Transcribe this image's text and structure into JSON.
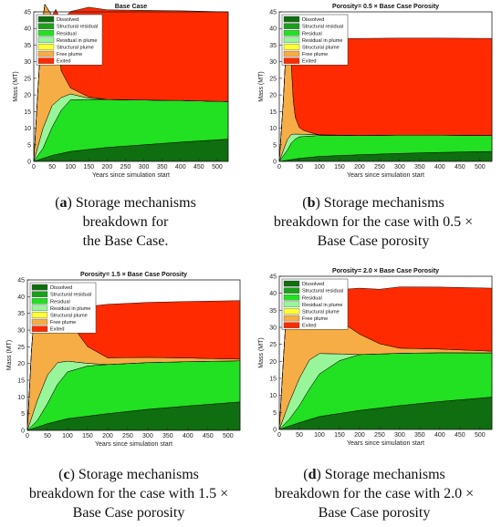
{
  "colors": {
    "dissolved": "#0f6e0f",
    "structural_residual": "#1aa01a",
    "residual": "#22e022",
    "residual_in_plume": "#99f599",
    "structural_plume": "#ffff33",
    "free_plume": "#f7ad45",
    "exited": "#ff2a00"
  },
  "chart_data": [
    {
      "type": "area",
      "title": "Base Case",
      "xlabel": "Years since simulation start",
      "ylabel": "Mass (MT)",
      "xlim": [
        0,
        530
      ],
      "ylim": [
        0,
        45
      ],
      "xticks": [
        0,
        50,
        100,
        150,
        200,
        250,
        300,
        350,
        400,
        450,
        500
      ],
      "yticks": [
        0,
        5,
        10,
        15,
        20,
        25,
        30,
        35,
        40,
        45
      ],
      "legend_position": "top-left",
      "series": [
        {
          "name": "Dissolved",
          "x": [
            0,
            50,
            100,
            200,
            300,
            400,
            530
          ],
          "values": [
            0,
            1.8,
            3.0,
            4.2,
            5.0,
            5.8,
            6.7
          ]
        },
        {
          "name": "Structural residual",
          "x": [
            0,
            530
          ],
          "values": [
            0,
            0
          ]
        },
        {
          "name": "Residual",
          "x": [
            0,
            25,
            50,
            75,
            100,
            150,
            200,
            530
          ],
          "values": [
            0,
            3.0,
            8.5,
            13.0,
            15.5,
            15.0,
            14.4,
            11.3
          ]
        },
        {
          "name": "Residual in plume",
          "x": [
            0,
            25,
            50,
            75,
            100,
            150,
            200,
            530
          ],
          "values": [
            0,
            6.0,
            6.5,
            3.8,
            1.8,
            0.4,
            0,
            0
          ]
        },
        {
          "name": "Structural plume",
          "x": [
            0,
            530
          ],
          "values": [
            0,
            0
          ]
        },
        {
          "name": "Free plume",
          "x": [
            0,
            10,
            20,
            30,
            50,
            60,
            75,
            100,
            150,
            200,
            530
          ],
          "values": [
            0,
            15,
            30,
            36,
            27,
            23,
            8,
            1.8,
            0.4,
            0,
            0
          ]
        },
        {
          "name": "Exited",
          "x": [
            0,
            10,
            20,
            30,
            50,
            60,
            75,
            100,
            150,
            200,
            530
          ],
          "values": [
            0,
            0,
            0,
            0,
            0,
            5,
            15,
            23,
            27,
            27,
            27
          ]
        }
      ]
    },
    {
      "type": "area",
      "title": "Porosity= 0.5 × Base Case Porosity",
      "xlabel": "Years since simulation start",
      "ylabel": "Mass (MT)",
      "xlim": [
        0,
        530
      ],
      "ylim": [
        0,
        45
      ],
      "xticks": [
        0,
        50,
        100,
        150,
        200,
        250,
        300,
        350,
        400,
        450,
        500
      ],
      "yticks": [
        0,
        5,
        10,
        15,
        20,
        25,
        30,
        35,
        40,
        45
      ],
      "legend_position": "top-left",
      "series": [
        {
          "name": "Dissolved",
          "x": [
            0,
            50,
            100,
            200,
            300,
            400,
            530
          ],
          "values": [
            0,
            0.9,
            1.5,
            2.0,
            2.4,
            2.7,
            3.0
          ]
        },
        {
          "name": "Structural residual",
          "x": [
            0,
            530
          ],
          "values": [
            0,
            0
          ]
        },
        {
          "name": "Residual",
          "x": [
            0,
            20,
            30,
            40,
            50,
            100,
            200,
            530
          ],
          "values": [
            0,
            3.0,
            5.0,
            6.0,
            6.5,
            6.3,
            5.8,
            4.8
          ]
        },
        {
          "name": "Residual in plume",
          "x": [
            0,
            20,
            30,
            40,
            50,
            100,
            200,
            530
          ],
          "values": [
            0,
            3.2,
            2.6,
            1.5,
            0.8,
            0.2,
            0,
            0
          ]
        },
        {
          "name": "Structural plume",
          "x": [
            0,
            530
          ],
          "values": [
            0,
            0
          ]
        },
        {
          "name": "Free plume",
          "x": [
            0,
            10,
            20,
            30,
            35,
            40,
            50,
            60,
            80,
            100,
            200,
            530
          ],
          "values": [
            0,
            15,
            35,
            21,
            10,
            5,
            2,
            1.2,
            0.5,
            0,
            0,
            0
          ]
        },
        {
          "name": "Exited",
          "x": [
            0,
            10,
            20,
            30,
            35,
            40,
            50,
            60,
            80,
            100,
            200,
            530
          ],
          "values": [
            0,
            0,
            0,
            5,
            15,
            22,
            27,
            27.8,
            28.3,
            29,
            29.2,
            29.2
          ]
        }
      ]
    },
    {
      "type": "area",
      "title": "Porosity= 1.5 × Base Case Porosity",
      "xlabel": "Years since simulation start",
      "ylabel": "Mass (MT)",
      "xlim": [
        0,
        530
      ],
      "ylim": [
        0,
        45
      ],
      "xticks": [
        0,
        50,
        100,
        150,
        200,
        250,
        300,
        350,
        400,
        450,
        500
      ],
      "yticks": [
        0,
        5,
        10,
        15,
        20,
        25,
        30,
        35,
        40,
        45
      ],
      "legend_position": "top-left",
      "series": [
        {
          "name": "Dissolved",
          "x": [
            0,
            50,
            100,
            200,
            300,
            400,
            530
          ],
          "values": [
            0,
            2.0,
            3.5,
            5.0,
            6.3,
            7.3,
            8.5
          ]
        },
        {
          "name": "Structural residual",
          "x": [
            0,
            530
          ],
          "values": [
            0,
            0
          ]
        },
        {
          "name": "Residual",
          "x": [
            0,
            25,
            50,
            75,
            100,
            150,
            200,
            530
          ],
          "values": [
            0,
            2.0,
            6.0,
            11.0,
            14.0,
            15.0,
            14.7,
            12.3
          ]
        },
        {
          "name": "Residual in plume",
          "x": [
            0,
            25,
            50,
            75,
            100,
            150,
            200,
            530
          ],
          "values": [
            0,
            6.0,
            8.5,
            6.5,
            3.2,
            0.8,
            0,
            0
          ]
        },
        {
          "name": "Structural plume",
          "x": [
            0,
            530
          ],
          "values": [
            0,
            0
          ]
        },
        {
          "name": "Free plume",
          "x": [
            0,
            10,
            20,
            35,
            50,
            70,
            90,
            110,
            130,
            150,
            200,
            530
          ],
          "values": [
            0,
            20,
            32,
            31.5,
            25,
            20,
            15,
            12,
            8,
            5,
            2,
            0.5
          ]
        },
        {
          "name": "Exited",
          "x": [
            0,
            10,
            20,
            35,
            50,
            70,
            90,
            110,
            130,
            150,
            200,
            530
          ],
          "values": [
            0,
            0,
            0,
            0,
            0,
            0,
            0,
            4,
            9,
            12,
            16,
            17.5
          ]
        }
      ]
    },
    {
      "type": "area",
      "title": "Porosity= 2.0 × Base Case Porosity",
      "xlabel": "Years since simulation start",
      "ylabel": "Mass (MT)",
      "xlim": [
        0,
        530
      ],
      "ylim": [
        0,
        45
      ],
      "xticks": [
        0,
        50,
        100,
        150,
        200,
        250,
        300,
        350,
        400,
        450,
        500
      ],
      "yticks": [
        0,
        5,
        10,
        15,
        20,
        25,
        30,
        35,
        40,
        45
      ],
      "legend_position": "top-left",
      "series": [
        {
          "name": "Dissolved",
          "x": [
            0,
            50,
            100,
            200,
            300,
            400,
            530
          ],
          "values": [
            0,
            2.0,
            3.8,
            5.6,
            7.0,
            8.2,
            9.5
          ]
        },
        {
          "name": "Structural residual",
          "x": [
            0,
            530
          ],
          "values": [
            0,
            0
          ]
        },
        {
          "name": "Residual",
          "x": [
            0,
            25,
            50,
            75,
            100,
            150,
            200,
            530
          ],
          "values": [
            0,
            2.0,
            5.0,
            9.0,
            12.5,
            15.5,
            16.4,
            13.0
          ]
        },
        {
          "name": "Residual in plume",
          "x": [
            0,
            25,
            50,
            75,
            100,
            150,
            200,
            530
          ],
          "values": [
            0,
            5.0,
            8.0,
            8.5,
            6.0,
            2.0,
            0,
            0
          ]
        },
        {
          "name": "Structural plume",
          "x": [
            0,
            530
          ],
          "values": [
            0,
            0
          ]
        },
        {
          "name": "Free plume",
          "x": [
            0,
            10,
            20,
            35,
            50,
            80,
            120,
            160,
            200,
            250,
            300,
            530
          ],
          "values": [
            0,
            17,
            33,
            31.5,
            26.5,
            20,
            14,
            9,
            6,
            3,
            1.5,
            0.5
          ]
        },
        {
          "name": "Exited",
          "x": [
            0,
            10,
            20,
            35,
            50,
            80,
            120,
            160,
            200,
            250,
            300,
            530
          ],
          "values": [
            0,
            0,
            0,
            0,
            0,
            0,
            4,
            10,
            13.5,
            16,
            18,
            18.5
          ]
        }
      ]
    }
  ],
  "captions": [
    {
      "letter": "a",
      "line1": "Storage mechanisms",
      "line2": "breakdown for",
      "line3": "the Base Case."
    },
    {
      "letter": "b",
      "line1": "Storage mechanisms",
      "line2": "breakdown for the case with 0.5 ×",
      "line3": "Base Case porosity"
    },
    {
      "letter": "c",
      "line1": "Storage mechanisms",
      "line2": "breakdown for the case with 1.5 ×",
      "line3": "Base Case porosity"
    },
    {
      "letter": "d",
      "line1": "Storage mechanisms",
      "line2": "breakdown for the case with 2.0 ×",
      "line3": "Base Case porosity"
    }
  ]
}
